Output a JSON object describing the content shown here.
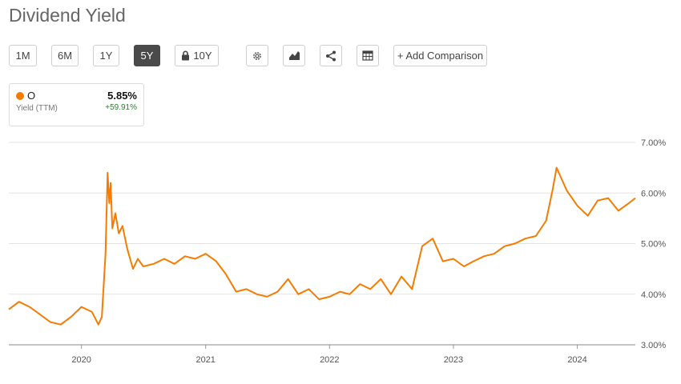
{
  "page": {
    "title": "Dividend Yield"
  },
  "toolbar": {
    "ranges": [
      "1M",
      "6M",
      "1Y",
      "5Y",
      "10Y"
    ],
    "active_range": "5Y",
    "locked_range": "10Y",
    "icons": [
      "gear-icon",
      "chart-type-icon",
      "share-icon",
      "table-icon"
    ],
    "add_comparison": "+ Add Comparison"
  },
  "legend": {
    "ticker": "O",
    "value": "5.85%",
    "label": "Yield (TTM)",
    "change": "+59.91%",
    "color": "#f57c00"
  },
  "chart_data": {
    "type": "line",
    "title": "",
    "xlabel": "",
    "ylabel": "",
    "y_ticks": [
      "3.00%",
      "4.00%",
      "5.00%",
      "6.00%",
      "7.00%"
    ],
    "x_ticks": [
      "2020",
      "2021",
      "2022",
      "2023",
      "2024"
    ],
    "ylim": [
      3.0,
      7.0
    ],
    "xlim": [
      "2019-06-01",
      "2024-06-20"
    ],
    "grid": true,
    "series": [
      {
        "name": "O",
        "color": "#f57c00",
        "x": [
          "2019-06-01",
          "2019-07-01",
          "2019-08-01",
          "2019-09-01",
          "2019-10-01",
          "2019-11-01",
          "2019-12-01",
          "2020-01-01",
          "2020-02-01",
          "2020-02-20",
          "2020-03-01",
          "2020-03-12",
          "2020-03-18",
          "2020-03-23",
          "2020-03-27",
          "2020-04-01",
          "2020-04-10",
          "2020-04-20",
          "2020-05-01",
          "2020-05-15",
          "2020-06-01",
          "2020-06-15",
          "2020-07-01",
          "2020-08-01",
          "2020-09-01",
          "2020-10-01",
          "2020-11-01",
          "2020-12-01",
          "2021-01-01",
          "2021-02-01",
          "2021-03-01",
          "2021-04-01",
          "2021-05-01",
          "2021-06-01",
          "2021-07-01",
          "2021-08-01",
          "2021-09-01",
          "2021-10-01",
          "2021-11-01",
          "2021-12-01",
          "2022-01-01",
          "2022-02-01",
          "2022-03-01",
          "2022-04-01",
          "2022-05-01",
          "2022-06-01",
          "2022-07-01",
          "2022-08-01",
          "2022-09-01",
          "2022-10-01",
          "2022-11-01",
          "2022-12-01",
          "2023-01-01",
          "2023-02-01",
          "2023-03-01",
          "2023-04-01",
          "2023-05-01",
          "2023-06-01",
          "2023-07-01",
          "2023-08-01",
          "2023-09-01",
          "2023-10-01",
          "2023-10-20",
          "2023-11-01",
          "2023-12-01",
          "2024-01-01",
          "2024-02-01",
          "2024-03-01",
          "2024-04-01",
          "2024-05-01",
          "2024-06-01",
          "2024-06-20"
        ],
        "values": [
          3.7,
          3.85,
          3.75,
          3.6,
          3.45,
          3.4,
          3.55,
          3.75,
          3.65,
          3.4,
          3.55,
          4.8,
          6.4,
          5.8,
          6.2,
          5.3,
          5.6,
          5.2,
          5.35,
          4.9,
          4.5,
          4.7,
          4.55,
          4.6,
          4.7,
          4.6,
          4.75,
          4.7,
          4.8,
          4.65,
          4.4,
          4.05,
          4.1,
          4.0,
          3.95,
          4.05,
          4.3,
          4.0,
          4.1,
          3.9,
          3.95,
          4.05,
          4.0,
          4.2,
          4.1,
          4.3,
          4.0,
          4.35,
          4.1,
          4.95,
          5.1,
          4.65,
          4.7,
          4.55,
          4.65,
          4.75,
          4.8,
          4.95,
          5.0,
          5.1,
          5.15,
          5.45,
          6.05,
          6.5,
          6.05,
          5.75,
          5.55,
          5.85,
          5.9,
          5.65,
          5.8,
          5.9
        ]
      }
    ]
  }
}
